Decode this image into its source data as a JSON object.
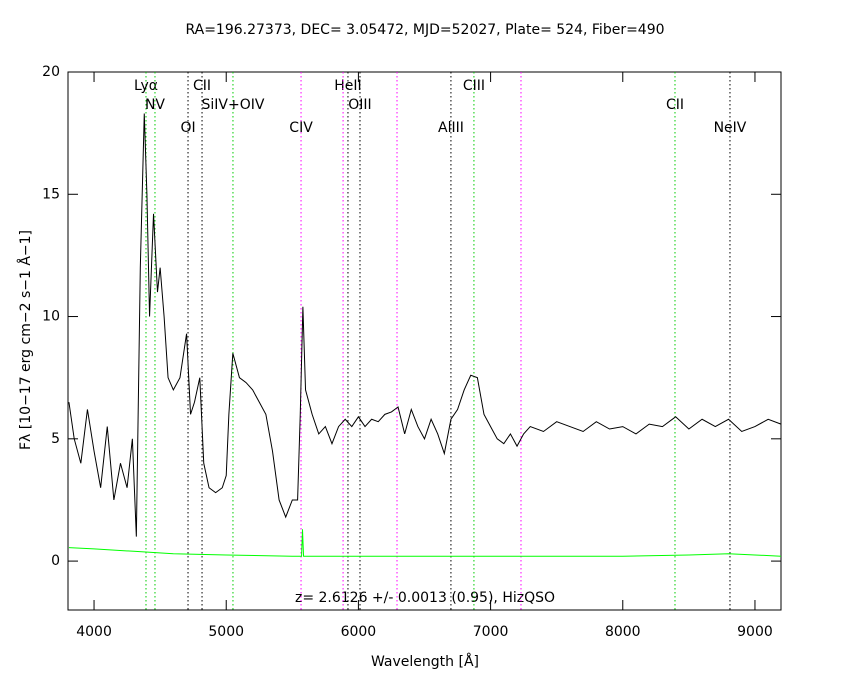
{
  "chart_data": {
    "type": "line",
    "title": "RA=196.27373, DEC= 3.05472, MJD=52027, Plate= 524, Fiber=490",
    "x_label": "Wavelength [Å]",
    "y_label": "Fλ [10−17 erg cm−2 s−1 Å−1]",
    "annotation": "z= 2.6126 +/- 0.0013 (0.95), HizQSO",
    "xlim": [
      3803,
      9197
    ],
    "ylim": [
      -2,
      20
    ],
    "xticks": [
      4000,
      5000,
      6000,
      7000,
      8000,
      9000
    ],
    "yticks": [
      0,
      5,
      10,
      15,
      20
    ],
    "series": [
      {
        "name": "flux",
        "color": "#000000",
        "x": [
          3810,
          3850,
          3900,
          3950,
          4000,
          4050,
          4100,
          4150,
          4200,
          4250,
          4290,
          4320,
          4350,
          4380,
          4400,
          4420,
          4450,
          4480,
          4500,
          4530,
          4560,
          4600,
          4650,
          4700,
          4730,
          4760,
          4800,
          4830,
          4870,
          4920,
          4970,
          5000,
          5020,
          5050,
          5100,
          5150,
          5200,
          5250,
          5300,
          5350,
          5400,
          5450,
          5500,
          5540,
          5560,
          5580,
          5600,
          5650,
          5700,
          5750,
          5800,
          5850,
          5900,
          5950,
          6000,
          6050,
          6100,
          6150,
          6200,
          6250,
          6300,
          6350,
          6400,
          6450,
          6500,
          6550,
          6600,
          6650,
          6700,
          6750,
          6800,
          6850,
          6900,
          6950,
          7000,
          7050,
          7100,
          7150,
          7200,
          7250,
          7300,
          7400,
          7500,
          7600,
          7700,
          7800,
          7900,
          8000,
          8100,
          8200,
          8300,
          8400,
          8500,
          8600,
          8700,
          8800,
          8900,
          9000,
          9100,
          9197
        ],
        "values": [
          6.5,
          5,
          4,
          6.2,
          4.5,
          3,
          5.5,
          2.5,
          4,
          3,
          5,
          1,
          12,
          18.3,
          15,
          10,
          14.2,
          11,
          12,
          10,
          7.5,
          7,
          7.5,
          9.3,
          6,
          6.5,
          7.5,
          4,
          3,
          2.8,
          3,
          3.5,
          6,
          8.5,
          7.5,
          7.3,
          7,
          6.5,
          6,
          4.5,
          2.5,
          1.8,
          2.5,
          2.5,
          6,
          10.4,
          7,
          6,
          5.2,
          5.5,
          4.8,
          5.5,
          5.8,
          5.5,
          5.9,
          5.5,
          5.8,
          5.7,
          6,
          6.1,
          6.3,
          5.2,
          6.2,
          5.5,
          5,
          5.8,
          5.2,
          4.4,
          5.8,
          6.2,
          7,
          7.6,
          7.5,
          6,
          5.5,
          5,
          4.8,
          5.2,
          4.7,
          5.2,
          5.5,
          5.3,
          5.7,
          5.5,
          5.3,
          5.7,
          5.4,
          5.5,
          5.2,
          5.6,
          5.5,
          5.9,
          5.4,
          5.8,
          5.5,
          5.8,
          5.3,
          5.5,
          5.8,
          5.6
        ]
      },
      {
        "name": "error",
        "color": "#00ff00",
        "x": [
          3810,
          4000,
          4300,
          4600,
          5000,
          5500,
          5570,
          5577,
          5585,
          6000,
          6500,
          7000,
          7500,
          8000,
          8500,
          8800,
          9000,
          9197
        ],
        "values": [
          0.55,
          0.5,
          0.4,
          0.3,
          0.25,
          0.2,
          0.2,
          1.3,
          0.2,
          0.2,
          0.2,
          0.2,
          0.2,
          0.2,
          0.25,
          0.3,
          0.25,
          0.2
        ]
      }
    ],
    "lines": [
      {
        "wavelength": 4393,
        "color": "#00cc00",
        "label": "Lyα"
      },
      {
        "wavelength": 4461,
        "color": "#00cc00",
        "label": "NV"
      },
      {
        "wavelength": 4711,
        "color": "#000000",
        "label": "OI"
      },
      {
        "wavelength": 4817,
        "color": "#000000",
        "label": "CII"
      },
      {
        "wavelength": 5051,
        "color": "#00cc00",
        "label": "SiIV+OIV"
      },
      {
        "wavelength": 5566,
        "color": "#ff00ff",
        "label": "CIV"
      },
      {
        "wavelength": 5921,
        "color": "#000000",
        "label": "HeII"
      },
      {
        "wavelength": 6012,
        "color": "#000000",
        "label": "OIII"
      },
      {
        "wavelength": 6700,
        "color": "#000000",
        "label": "AlIII"
      },
      {
        "wavelength": 6874,
        "color": "#00cc00",
        "label": "CIII"
      },
      {
        "wavelength": 8395,
        "color": "#00cc00",
        "label": "CII"
      },
      {
        "wavelength": 8811,
        "color": "#000000",
        "label": "NeIV"
      },
      {
        "wavelength": 5884,
        "color": "#ff00ff"
      },
      {
        "wavelength": 6292,
        "color": "#ff00ff"
      },
      {
        "wavelength": 7230,
        "color": "#ff00ff"
      }
    ]
  }
}
